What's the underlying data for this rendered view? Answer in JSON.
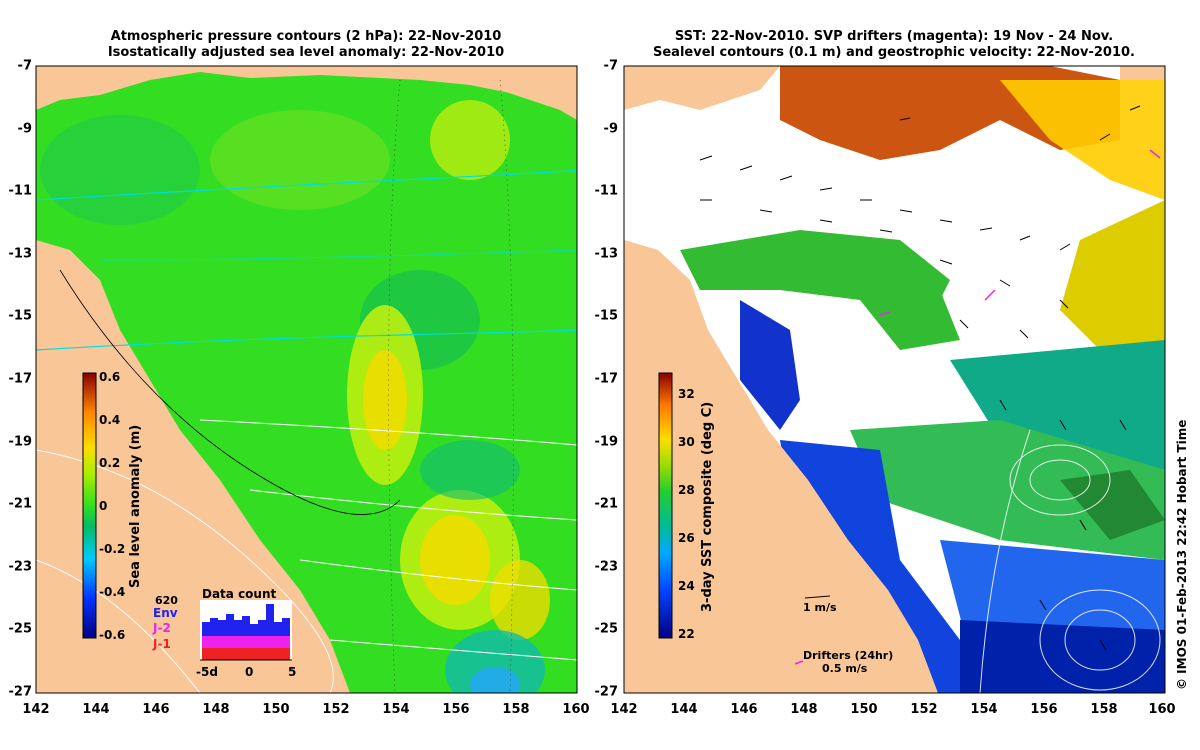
{
  "left": {
    "title1": "Atmospheric pressure contours (2 hPa): 22-Nov-2010",
    "title2": "Isostatically adjusted sea level anomaly: 22-Nov-2010",
    "colorbar_label": "Sea level anomaly (m)",
    "colorbar_ticks": [
      "0.6",
      "0.4",
      "0.2",
      "0",
      "-0.2",
      "-0.4",
      "-0.6"
    ],
    "data_count": {
      "title": "Data count",
      "max": "620",
      "legend": [
        {
          "label": "Env",
          "color": "#2222ee"
        },
        {
          "label": "J-2",
          "color": "#ee22ee"
        },
        {
          "label": "J-1",
          "color": "#ee2222"
        }
      ],
      "xticks": [
        "-5d",
        "0",
        "5"
      ]
    }
  },
  "right": {
    "title1": "SST: 22-Nov-2010. SVP drifters (magenta): 19 Nov - 24 Nov.",
    "title2": "Sealevel contours (0.1 m) and geostrophic velocity: 22-Nov-2010.",
    "colorbar_label": "3-day SST composite (deg C)",
    "colorbar_ticks": [
      "32",
      "30",
      "28",
      "26",
      "24",
      "22"
    ],
    "velocity_scale": "1 m/s",
    "drifters_label": "Drifters (24hr)",
    "drifters_scale": "0.5 m/s"
  },
  "axes": {
    "x_ticks": [
      "142",
      "144",
      "146",
      "148",
      "150",
      "152",
      "154",
      "156",
      "158",
      "160"
    ],
    "y_ticks": [
      "-7",
      "-9",
      "-11",
      "-13",
      "-15",
      "-17",
      "-19",
      "-21",
      "-23",
      "-25",
      "-27"
    ],
    "lon_range": [
      142,
      160
    ],
    "lat_range": [
      -7,
      -27
    ]
  },
  "credit": "© IMOS 01-Feb-2013 22:42 Hobart Time",
  "colors": {
    "land": "#f9c698",
    "sla_ocean": "#33dd22",
    "sst_ocean": "#ffffff"
  }
}
